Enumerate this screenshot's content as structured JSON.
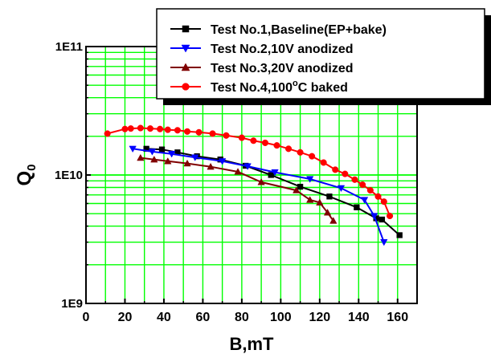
{
  "chart_data": {
    "type": "line",
    "xlabel": "B,mT",
    "ylabel": "Q",
    "ylabel_subscript": "0",
    "xlim": [
      0,
      170
    ],
    "ylim": [
      1000000000,
      100000000000
    ],
    "y_scale": "log",
    "grid": true,
    "grid_color": "#00ff00",
    "legend_position": "top-right",
    "x_ticks": [
      "0",
      "20",
      "40",
      "60",
      "80",
      "100",
      "120",
      "140",
      "160"
    ],
    "y_ticks": [
      {
        "value": 1000000000,
        "label": "1E9"
      },
      {
        "value": 10000000000,
        "label": "1E10"
      },
      {
        "value": 100000000000,
        "label": "1E11"
      }
    ],
    "series": [
      {
        "name": "Test No.1,Baseline(EP+bake)",
        "color": "#000000",
        "marker": "square",
        "x": [
          31,
          39,
          47,
          57,
          69,
          82,
          95,
          110,
          125,
          139,
          149,
          152,
          161
        ],
        "y": [
          16000000000,
          15800000000,
          15000000000,
          14000000000,
          13200000000,
          11800000000,
          10000000000,
          8100000000,
          6800000000,
          5600000000,
          4600000000,
          4500000000,
          3400000000
        ]
      },
      {
        "name": "Test No.2,10V anodized",
        "color": "#0000ff",
        "marker": "triangle-down",
        "x": [
          24,
          34,
          44,
          56,
          70,
          83,
          97,
          115,
          131,
          143,
          148,
          153
        ],
        "y": [
          16000000000,
          15200000000,
          14600000000,
          13700000000,
          12800000000,
          11700000000,
          10500000000,
          9300000000,
          7900000000,
          6400000000,
          4800000000,
          3000000000
        ]
      },
      {
        "name": "Test No.3,20V anodized",
        "color": "#800000",
        "marker": "triangle-up",
        "x": [
          28,
          35,
          42,
          52,
          64,
          78,
          90,
          108,
          115,
          120,
          124,
          127
        ],
        "y": [
          13600000000,
          13200000000,
          12800000000,
          12300000000,
          11600000000,
          10600000000,
          8800000000,
          7600000000,
          6400000000,
          6100000000,
          5100000000,
          4400000000
        ]
      },
      {
        "name": "Test No.4,100°C baked",
        "color": "#ff0000",
        "marker": "circle",
        "x": [
          11,
          20,
          23,
          28,
          33,
          38,
          42,
          47,
          52,
          58,
          65,
          72,
          80,
          86,
          92,
          98,
          104,
          110,
          116,
          122,
          128,
          133,
          138,
          142,
          146,
          150,
          153,
          156
        ],
        "y": [
          21000000000,
          22800000000,
          23000000000,
          23200000000,
          23000000000,
          22800000000,
          22500000000,
          22300000000,
          21800000000,
          21500000000,
          21000000000,
          20300000000,
          19500000000,
          18500000000,
          17800000000,
          17000000000,
          16000000000,
          15000000000,
          14000000000,
          12500000000,
          11000000000,
          10200000000,
          9200000000,
          8400000000,
          7600000000,
          6800000000,
          6200000000,
          4800000000
        ]
      }
    ]
  }
}
